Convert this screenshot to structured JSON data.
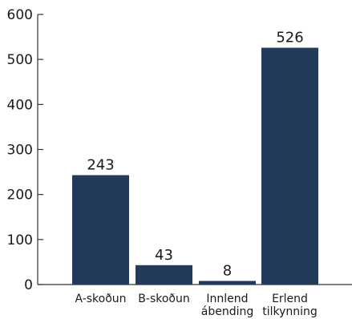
{
  "chart_data": {
    "type": "bar",
    "categories": [
      [
        "A-skoðun"
      ],
      [
        "B-skoðun"
      ],
      [
        "Innlend",
        "ábending"
      ],
      [
        "Erlend",
        "tilkynning"
      ]
    ],
    "values": [
      243,
      43,
      8,
      526
    ],
    "data_labels": [
      "243",
      "43",
      "8",
      "526"
    ],
    "yticks": [
      "0",
      "100",
      "200",
      "300",
      "400",
      "500",
      "600"
    ],
    "ylim": [
      0,
      600
    ],
    "grid": false,
    "legend": "none",
    "bar_color": "#243a5b",
    "axis_color": "#333333"
  }
}
